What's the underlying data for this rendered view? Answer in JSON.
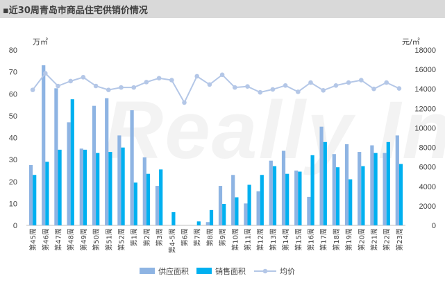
{
  "header": {
    "title": "▪近30周青岛市商品住宅供销价情况"
  },
  "watermark": {
    "text": "Really Info"
  },
  "chart_data": {
    "type": "bar",
    "title": "近30周青岛市商品住宅供销价情况",
    "categories": [
      "第45周",
      "第46周",
      "第47周",
      "第48周",
      "第49周",
      "第50周",
      "第51周",
      "第52周",
      "第1周",
      "第2周",
      "第3周",
      "第4-5周",
      "第6周",
      "第7周",
      "第8周",
      "第9周",
      "第10周",
      "第11周",
      "第12周",
      "第13周",
      "第14周",
      "第15周",
      "第16周",
      "第17周",
      "第18周",
      "第19周",
      "第20周",
      "第21周",
      "第22周",
      "第23周"
    ],
    "left_axis": {
      "unit": "万㎡",
      "ylim": [
        0,
        80
      ],
      "ticks": [
        "0",
        "10",
        "20",
        "30",
        "40",
        "50",
        "60",
        "70",
        "80"
      ]
    },
    "right_axis": {
      "unit": "元/㎡",
      "ylim": [
        0,
        18000
      ],
      "ticks": [
        "0",
        "2000",
        "4000",
        "6000",
        "8000",
        "10000",
        "12000",
        "14000",
        "16000",
        "18000"
      ]
    },
    "series": [
      {
        "name": "供应面积",
        "type": "bar",
        "axis": "left",
        "color": "#8eb4e3",
        "values": [
          27.5,
          73,
          62.5,
          47,
          35,
          54.5,
          58,
          41,
          52.5,
          31,
          18,
          0,
          0,
          0,
          1.5,
          18,
          23,
          10,
          15.5,
          29.5,
          34,
          25,
          13,
          45,
          32.5,
          37,
          33.5,
          36.5,
          33,
          41
        ]
      },
      {
        "name": "销售面积",
        "type": "bar",
        "axis": "left",
        "color": "#00b0f0",
        "values": [
          23,
          29,
          34.5,
          57.5,
          34.5,
          33,
          33.5,
          35.5,
          19.5,
          23.5,
          25.5,
          6,
          0,
          1.8,
          7,
          9.8,
          12.8,
          18.5,
          23,
          27,
          23.5,
          24.5,
          32,
          38,
          26.5,
          21,
          27,
          33,
          38,
          28
        ]
      },
      {
        "name": "均价",
        "type": "line",
        "axis": "right",
        "color": "#b4c7e7",
        "values": [
          13900,
          15600,
          14300,
          14800,
          15200,
          14300,
          13900,
          14150,
          14150,
          14700,
          15100,
          14900,
          12600,
          15300,
          14450,
          15450,
          14150,
          14250,
          13650,
          13950,
          14350,
          13700,
          14650,
          13850,
          14350,
          14650,
          14900,
          14000,
          14650,
          14050
        ]
      }
    ],
    "legend": {
      "position": "bottom",
      "items": [
        "供应面积",
        "销售面积",
        "均价"
      ]
    },
    "grid": false
  }
}
